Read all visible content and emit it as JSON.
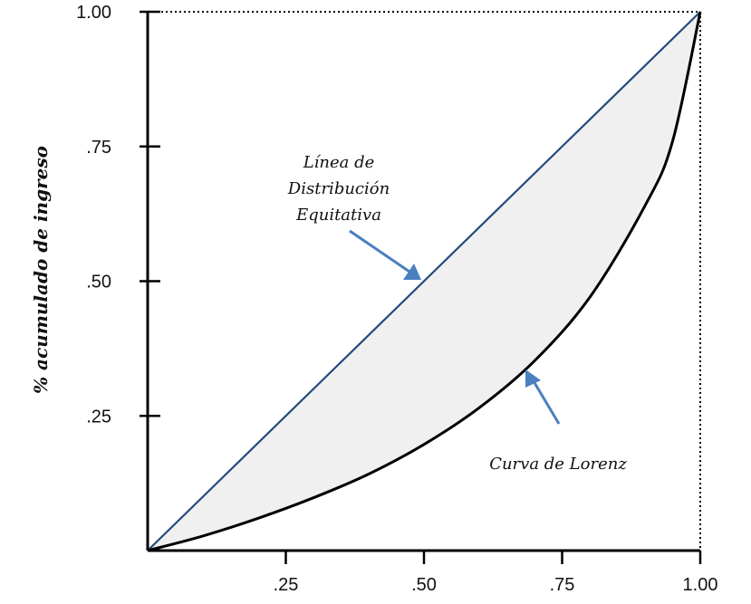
{
  "chart_data": {
    "type": "line",
    "title": "",
    "xlabel": "",
    "ylabel": "% acumulado de ingreso",
    "xlim": [
      0,
      1
    ],
    "ylim": [
      0,
      1
    ],
    "x_ticks": [
      ".25",
      ".50",
      ".75",
      "1.00"
    ],
    "x_tick_values": [
      0.25,
      0.5,
      0.75,
      1.0
    ],
    "y_ticks": [
      ".25",
      ".50",
      ".75",
      "1.00"
    ],
    "y_tick_values": [
      0.25,
      0.5,
      0.75,
      1.0
    ],
    "grid": false,
    "series": [
      {
        "role": "equality",
        "x": [
          0,
          1
        ],
        "y": [
          0,
          1
        ],
        "color": "#23497d"
      },
      {
        "role": "lorenz",
        "x": [
          0,
          0.1,
          0.2,
          0.3,
          0.4,
          0.5,
          0.6,
          0.7,
          0.8,
          0.9,
          0.95,
          1.0
        ],
        "y": [
          0,
          0.027,
          0.06,
          0.098,
          0.142,
          0.197,
          0.265,
          0.352,
          0.47,
          0.64,
          0.76,
          1.0
        ],
        "color": "#000000"
      }
    ],
    "fill_between_color": "#f0f0f0",
    "annotations": [
      {
        "id": "equality",
        "lines": [
          "Línea de",
          "Distribución",
          "Equitativa"
        ],
        "target": [
          0.5,
          0.5
        ],
        "arrow_color": "#4a7fc0"
      },
      {
        "id": "lorenz",
        "lines": [
          "Curva de Lorenz"
        ],
        "target": [
          0.68,
          0.335
        ],
        "arrow_color": "#4a7fc0"
      }
    ]
  }
}
